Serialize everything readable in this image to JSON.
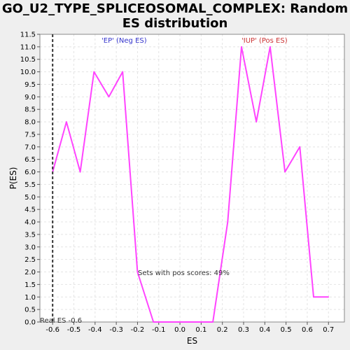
{
  "chart_data": {
    "type": "line",
    "title": "GO_U2_TYPE_SPLICEOSOMAL_COMPLEX: Random ES distribution",
    "xlabel": "ES",
    "ylabel": "P(ES)",
    "xlim": [
      -0.66,
      0.775
    ],
    "ylim": [
      0,
      11.5
    ],
    "x_ticks": [
      "-0.6",
      "-0.5",
      "-0.4",
      "-0.3",
      "-0.2",
      "-0.1",
      "0.0",
      "0.1",
      "0.2",
      "0.3",
      "0.4",
      "0.5",
      "0.6",
      "0.7"
    ],
    "y_ticks": [
      "0.0",
      "0.5",
      "1.0",
      "1.5",
      "2.0",
      "2.5",
      "3.0",
      "3.5",
      "4.0",
      "4.5",
      "5.0",
      "5.5",
      "6.0",
      "6.5",
      "7.0",
      "7.5",
      "8.0",
      "8.5",
      "9.0",
      "9.5",
      "10.0",
      "10.5",
      "11.0",
      "11.5"
    ],
    "grid": true,
    "series": [
      {
        "color": "#ff44ff",
        "x": [
          -0.6,
          -0.535,
          -0.47,
          -0.405,
          -0.335,
          -0.27,
          -0.2,
          -0.125,
          -0.06,
          0.0,
          0.09,
          0.155,
          0.225,
          0.29,
          0.36,
          0.425,
          0.495,
          0.565,
          0.63,
          0.7
        ],
        "y": [
          6.0,
          8.0,
          6.0,
          10.0,
          9.0,
          10.0,
          2.0,
          0.0,
          0.0,
          0.0,
          0.0,
          0.0,
          4.0,
          11.0,
          8.0,
          11.0,
          6.0,
          7.0,
          1.0,
          1.0
        ]
      }
    ],
    "real_es": -0.6,
    "annotations": {
      "neg": "'EP' (Neg ES)",
      "pos": "'IUP' (Pos ES)",
      "sets_pos": "Sets with pos scores: 49%",
      "real_es_label": "Real ES -0.6"
    },
    "colors": {
      "neg": "#3333cc",
      "pos": "#cc3333",
      "marker": "#333333",
      "annotation": "#333333"
    }
  }
}
